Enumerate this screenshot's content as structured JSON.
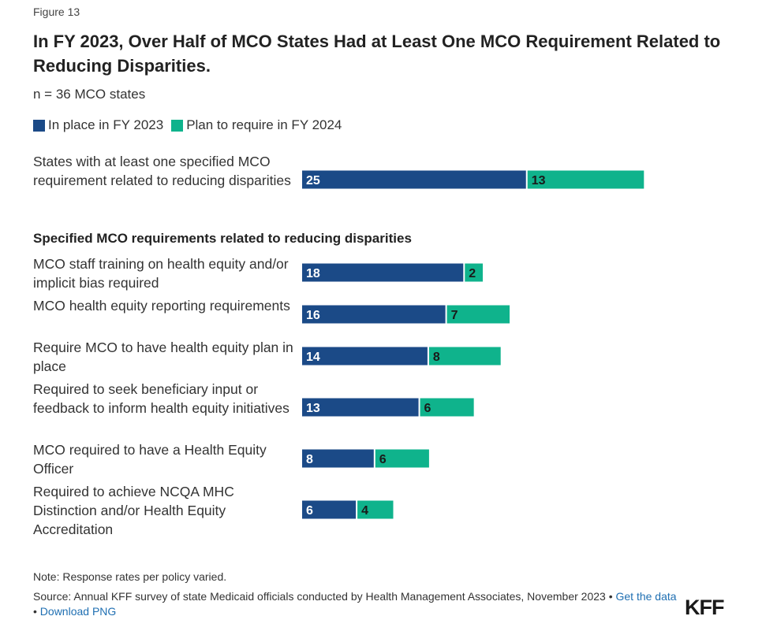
{
  "figure_label": "Figure 13",
  "title": "In FY 2023, Over Half of MCO States Had at Least One MCO Requirement Related to Reducing Disparities.",
  "subtitle": "n = 36 MCO states",
  "section_heading": "Specified MCO requirements related to reducing disparities",
  "colors": {
    "in_place": "#1b4a87",
    "plan": "#0fb38c"
  },
  "chart_data": {
    "type": "bar",
    "orientation": "horizontal",
    "stacked": true,
    "categories": [
      "States with at least one specified MCO requirement related to reducing disparities",
      "MCO staff training on health equity and/or implicit bias required",
      "MCO health equity reporting requirements",
      "Require MCO to have health equity plan in place",
      "Required to seek beneficiary input or feedback to inform health equity initiatives",
      "MCO required to have a Health Equity Officer",
      "Required to achieve NCQA MHC Distinction and/or Health Equity Accreditation"
    ],
    "series": [
      {
        "name": "In place in FY 2023",
        "values": [
          25,
          18,
          16,
          14,
          13,
          8,
          6
        ]
      },
      {
        "name": "Plan to require in FY 2024",
        "values": [
          13,
          2,
          7,
          8,
          6,
          6,
          4
        ]
      }
    ],
    "legend_position": "top-left",
    "grid": false
  },
  "note": "Note: Response rates per policy varied.",
  "source_text": "Source: Annual KFF survey of state Medicaid officials conducted by Health Management Associates, November 2023 • ",
  "get_data_label": "Get the data",
  "separator": " • ",
  "download_label": "Download PNG",
  "logo_text": "KFF"
}
